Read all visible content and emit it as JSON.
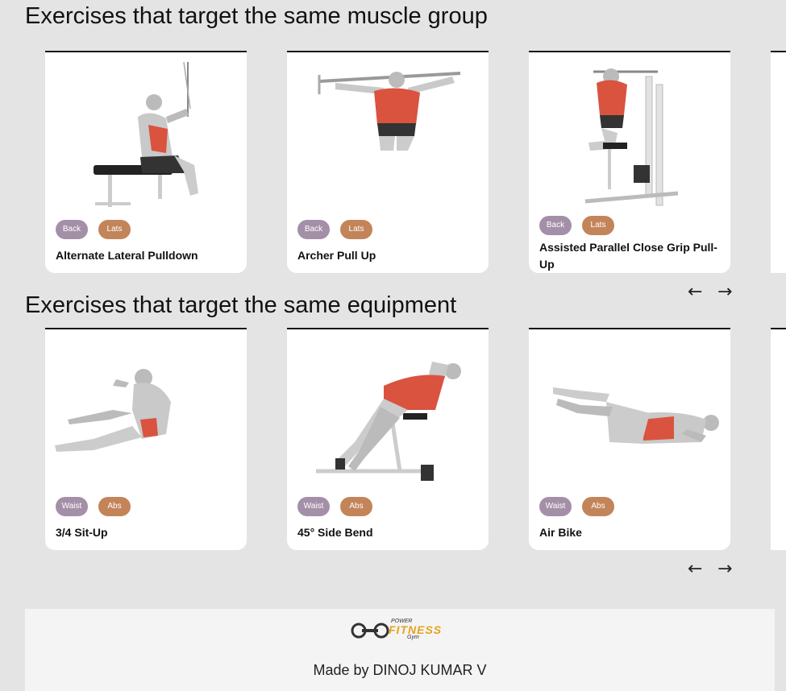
{
  "sections": {
    "muscle": {
      "title": "Exercises that target the same muscle group",
      "cards": [
        {
          "name": "Alternate Lateral Pulldown",
          "tags": [
            "Back",
            "Lats"
          ]
        },
        {
          "name": "Archer Pull Up",
          "tags": [
            "Back",
            "Lats"
          ]
        },
        {
          "name": "Assisted Parallel Close Grip Pull-Up",
          "tags": [
            "Back",
            "Lats"
          ]
        }
      ]
    },
    "equipment": {
      "title": "Exercises that target the same equipment",
      "cards": [
        {
          "name": "3/4 Sit-Up",
          "tags": [
            "Waist",
            "Abs"
          ]
        },
        {
          "name": "45° Side Bend",
          "tags": [
            "Waist",
            "Abs"
          ]
        },
        {
          "name": "Air Bike",
          "tags": [
            "Waist",
            "Abs"
          ]
        }
      ]
    }
  },
  "nav": {
    "prev": "←",
    "next": "→"
  },
  "colors": {
    "body_part_tag": "#a48fa8",
    "target_tag": "#c3845a",
    "muscle_highlight": "#d9533f"
  },
  "footer": {
    "logo": {
      "top": "POWER",
      "main": "FITNESS",
      "sub": "Gym"
    },
    "credit": "Made by DINOJ KUMAR V"
  }
}
